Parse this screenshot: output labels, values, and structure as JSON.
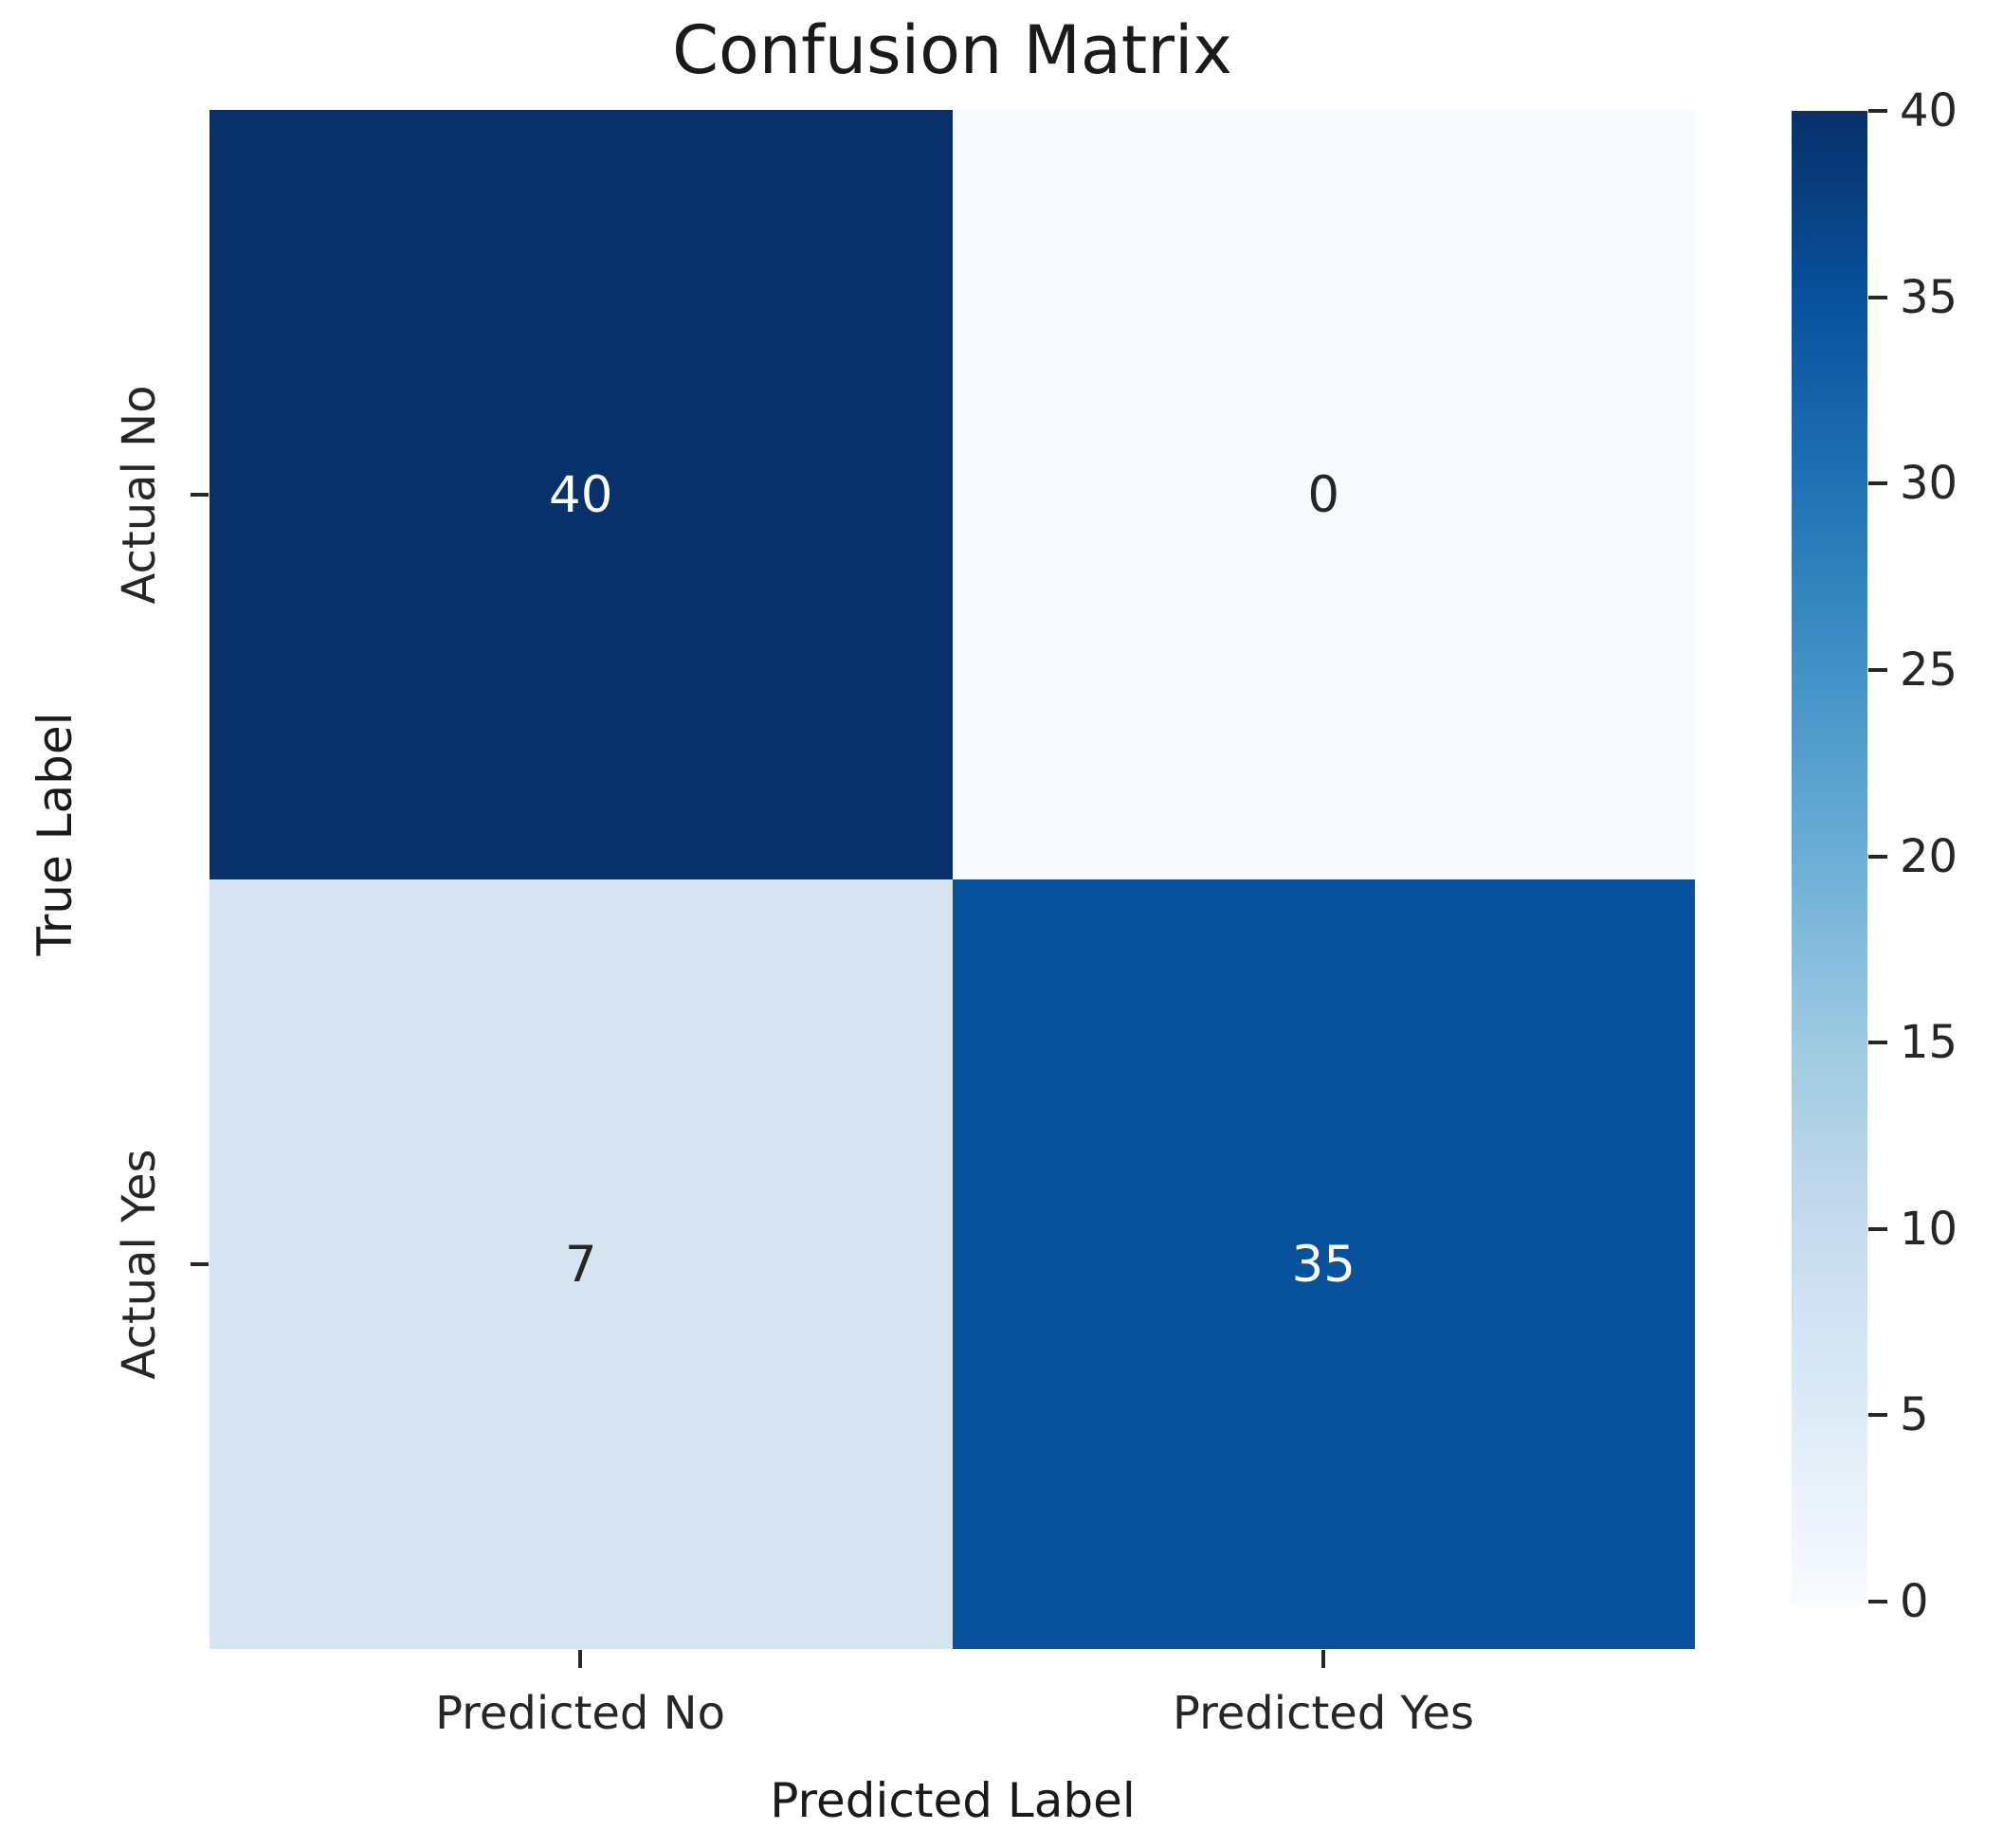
{
  "chart_data": {
    "type": "heatmap",
    "title": "Confusion Matrix",
    "xlabel": "Predicted Label",
    "ylabel": "True Label",
    "x_categories": [
      "Predicted No",
      "Predicted Yes"
    ],
    "y_categories": [
      "Actual No",
      "Actual Yes"
    ],
    "values": [
      [
        40,
        0
      ],
      [
        7,
        35
      ]
    ],
    "colormap": "Blues",
    "vmin": 0,
    "vmax": 40,
    "legend_position": "right-colorbar",
    "grid": false,
    "cells": [
      {
        "row": "Actual No",
        "col": "Predicted No",
        "value": 40,
        "color": "#08306b",
        "text_color": "#ffffff"
      },
      {
        "row": "Actual No",
        "col": "Predicted Yes",
        "value": 0,
        "color": "#f7fbff",
        "text_color": "#262626"
      },
      {
        "row": "Actual Yes",
        "col": "Predicted No",
        "value": 7,
        "color": "#d6e4f2",
        "text_color": "#262626"
      },
      {
        "row": "Actual Yes",
        "col": "Predicted Yes",
        "value": 35,
        "color": "#08519c",
        "text_color": "#ffffff"
      }
    ],
    "colorbar": {
      "ticks": [
        0,
        5,
        10,
        15,
        20,
        25,
        30,
        35,
        40
      ],
      "gradient": [
        "#f7fbff 0%",
        "#deebf7 12.5%",
        "#c6dbef 25%",
        "#9ecae1 37.5%",
        "#6baed6 50%",
        "#4292c6 62.5%",
        "#2171b5 75%",
        "#08519c 87.5%",
        "#08306b 100%"
      ]
    }
  }
}
